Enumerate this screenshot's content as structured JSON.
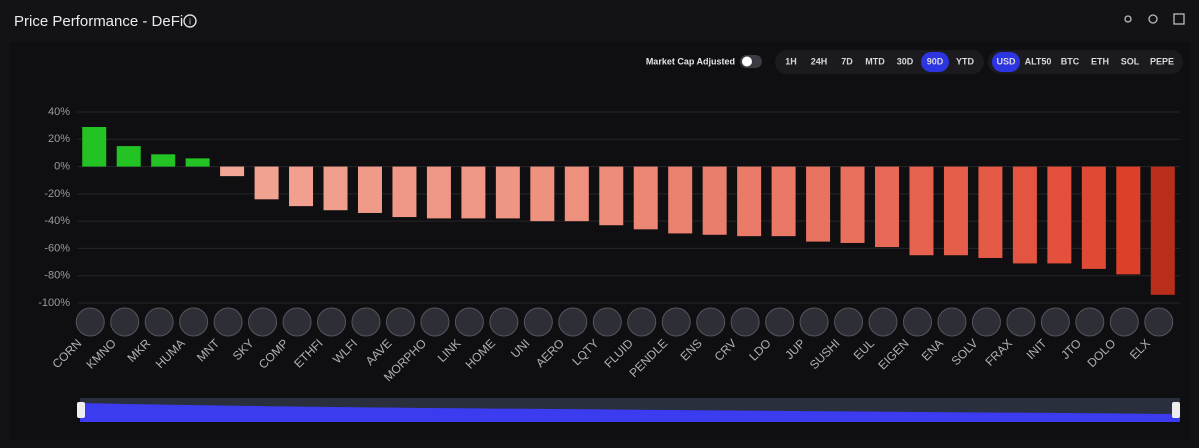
{
  "chart_data": {
    "type": "bar",
    "title": "Price Performance - DeFi",
    "toggle_label": "Market Cap Adjusted",
    "timeframes": [
      "1H",
      "24H",
      "7D",
      "MTD",
      "30D",
      "90D",
      "YTD"
    ],
    "active_timeframe": "90D",
    "currencies": [
      "USD",
      "ALT50",
      "BTC",
      "ETH",
      "SOL",
      "PEPE"
    ],
    "active_currency": "USD",
    "categories": [
      "CORN",
      "KMNO",
      "MKR",
      "HUMA",
      "MNT",
      "SKY",
      "COMP",
      "ETHFI",
      "WLFI",
      "AAVE",
      "MORPHO",
      "LINK",
      "HOME",
      "UNI",
      "AERO",
      "LQTY",
      "FLUID",
      "PENDLE",
      "ENS",
      "CRV",
      "LDO",
      "JUP",
      "SUSHI",
      "EUL",
      "EIGEN",
      "ENA",
      "SOLV",
      "FRAX",
      "INIT",
      "JTO",
      "DOLO",
      "ELX"
    ],
    "values": [
      29,
      15,
      9,
      6,
      -7,
      -24,
      -29,
      -32,
      -34,
      -37,
      -38,
      -38,
      -38,
      -40,
      -40,
      -43,
      -46,
      -49,
      -50,
      -51,
      -51,
      -55,
      -56,
      -59,
      -65,
      -65,
      -67,
      -71,
      -71,
      -75,
      -79,
      -94
    ],
    "colors": [
      "#22c322",
      "#22c322",
      "#22c322",
      "#22c322",
      "#f2a796",
      "#f2a291",
      "#f1a08f",
      "#f09d8b",
      "#f09b89",
      "#ef9886",
      "#ef9684",
      "#ef9684",
      "#ef9583",
      "#ee9280",
      "#ee907e",
      "#ed8c7a",
      "#ec8775",
      "#eb8270",
      "#ea7e6c",
      "#ea7b69",
      "#e97866",
      "#e87360",
      "#e76f5c",
      "#e66a57",
      "#e6624e",
      "#e55e4a",
      "#e45a46",
      "#e35541",
      "#e3513c",
      "#e04a35",
      "#dc4029",
      "#b92e1a"
    ],
    "ylim": [
      -100,
      40
    ],
    "yticks": [
      {
        "value": 40,
        "label": "40%"
      },
      {
        "value": 20,
        "label": "20%"
      },
      {
        "value": 0,
        "label": "0%"
      },
      {
        "value": -20,
        "label": "-20%"
      },
      {
        "value": -40,
        "label": "-40%"
      },
      {
        "value": -60,
        "label": "-60%"
      },
      {
        "value": -80,
        "label": "-80%"
      },
      {
        "value": -100,
        "label": "-100%"
      }
    ],
    "grid": true
  }
}
